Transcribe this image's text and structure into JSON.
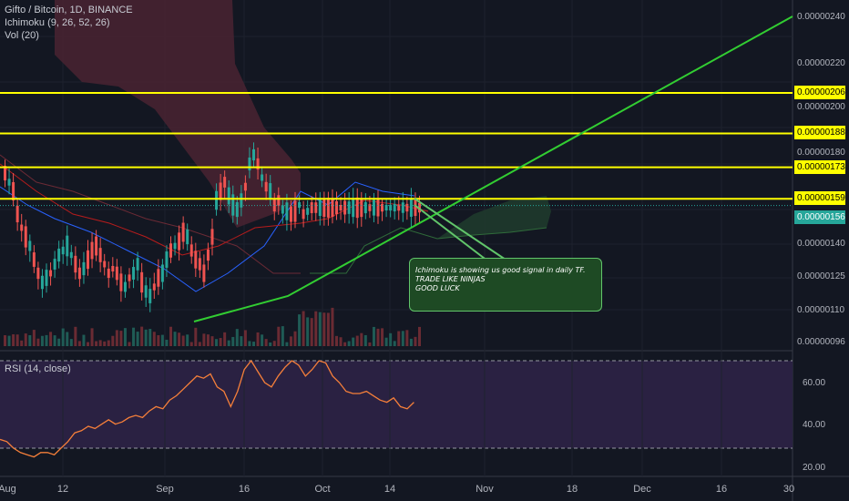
{
  "legend": {
    "symbol": "Gifto / Bitcoin, 1D, BINANCE",
    "ichimoku": "Ichimoku (9, 26, 52, 26)",
    "vol": "Vol (20)",
    "rsi": "RSI (14, close)"
  },
  "price_axis": {
    "ticks": [
      "0.00000240",
      "0.00000220",
      "0.00000200",
      "0.00000180",
      "0.00000140",
      "0.00000125",
      "0.00000110",
      "0.00000096"
    ],
    "levels": [
      "0.00000206",
      "0.00000188",
      "0.00000173",
      "0.00000159"
    ],
    "current": "0.00000156"
  },
  "rsi_axis": {
    "ticks": [
      "60.00",
      "40.00",
      "20.00"
    ]
  },
  "time_axis": {
    "labels": [
      "Aug",
      "12",
      "Sep",
      "16",
      "Oct",
      "14",
      "Nov",
      "18",
      "Dec",
      "16",
      "30"
    ]
  },
  "note": {
    "lines": [
      "Ichimoku is showing us good signal in daily TF.",
      "TRADE LIKE NINJAS",
      "GOOD LUCK"
    ]
  },
  "colors": {
    "background": "#131722",
    "up": "#26a69a",
    "down": "#ef5350",
    "levels": "#ffff00",
    "trend": "#32cd32",
    "rsi": "#f57f3a"
  },
  "chart_data": {
    "type": "candlestick",
    "price_levels": [
      2.06e-06,
      1.88e-06,
      1.73e-06,
      1.59e-06
    ],
    "current_price": 1.56e-06,
    "rsi_bands": [
      70,
      30
    ],
    "trend_line": [
      [
        " Sep 5",
        1.1e-06
      ],
      [
        "Sep 25",
        1.17e-06
      ],
      [
        "Dec 30",
        2.4e-06
      ]
    ],
    "rsi_values": [
      34,
      33,
      30,
      28,
      27,
      26,
      28,
      28,
      27,
      30,
      33,
      37,
      38,
      40,
      39,
      41,
      43,
      41,
      42,
      44,
      45,
      44,
      47,
      49,
      48,
      52,
      54,
      57,
      60,
      63,
      62,
      64,
      58,
      56,
      49,
      56,
      66,
      70,
      65,
      60,
      58,
      63,
      67,
      70,
      68,
      63,
      66,
      70,
      69,
      63,
      60,
      56,
      55,
      55,
      56,
      54,
      52,
      51,
      53,
      49,
      48,
      51
    ]
  }
}
